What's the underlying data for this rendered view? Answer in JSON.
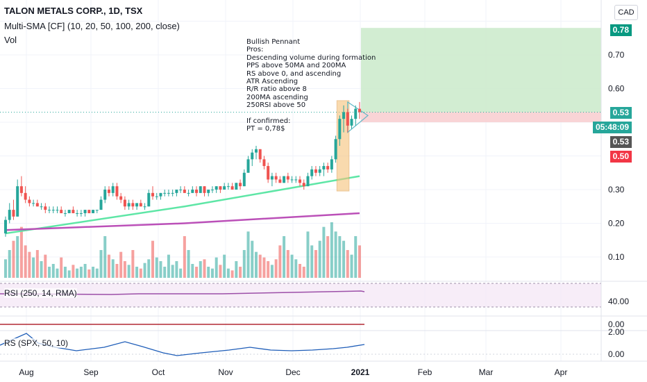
{
  "header": {
    "title": "TALON METALS CORP., 1D, TSX",
    "sma_label": "Multi-SMA [CF] (10, 20, 50, 100, 200, close)",
    "vol_label": "Vol",
    "currency_button": "CAD"
  },
  "annotation": {
    "lines": [
      "Bullish Pennant",
      "Pros:",
      "Descending volume during formation",
      "PPS above 50MA and 200MA",
      "RS above 0, and ascending",
      "ATR Ascending",
      "R/R ratio above 8",
      "200MA ascending",
      "250RSI above 50",
      "",
      "If confirmed:",
      "PT = 0,78$"
    ]
  },
  "price_badges": {
    "target": "0.78",
    "last": "0.53",
    "countdown": "05:48:09",
    "prev": "0.53",
    "stop": "0.50"
  },
  "colors": {
    "up": "#26a69a",
    "down": "#ef5350",
    "sma50": "#5ee6a6",
    "sma200": "#bb50b8",
    "target_zone": "#cdebcd",
    "stop_zone": "#f8cfd1",
    "rs_line": "#1e5db8",
    "rsi_line": "#9c4fa8",
    "pennant_box": "#f6c27a"
  },
  "panes": {
    "rsi_label": "RSI (250, 14, RMA)",
    "rs_label": "RS (SPX, 50, 10)",
    "rsi_axis": [
      "40.00"
    ],
    "zero_axis": [
      "0.00"
    ],
    "rs_axis": [
      "2.00",
      "0.00"
    ]
  },
  "chart_data": {
    "type": "candlestick",
    "title": "TALON METALS CORP., 1D, TSX",
    "x_ticks": [
      "Aug",
      "Sep",
      "Oct",
      "Nov",
      "Dec",
      "2021",
      "Feb",
      "Mar",
      "Apr"
    ],
    "y_ticks": [
      "0.10",
      "0.20",
      "0.30",
      "0.60",
      "0.70"
    ],
    "ylim": [
      0.05,
      0.82
    ],
    "ohlc": [
      [
        0.17,
        0.22,
        0.16,
        0.21
      ],
      [
        0.21,
        0.26,
        0.2,
        0.24
      ],
      [
        0.24,
        0.27,
        0.21,
        0.22
      ],
      [
        0.22,
        0.33,
        0.22,
        0.31
      ],
      [
        0.31,
        0.34,
        0.28,
        0.29
      ],
      [
        0.29,
        0.31,
        0.26,
        0.27
      ],
      [
        0.27,
        0.28,
        0.25,
        0.26
      ],
      [
        0.26,
        0.27,
        0.25,
        0.26
      ],
      [
        0.26,
        0.27,
        0.25,
        0.25
      ],
      [
        0.25,
        0.26,
        0.24,
        0.25
      ],
      [
        0.25,
        0.26,
        0.23,
        0.24
      ],
      [
        0.24,
        0.25,
        0.23,
        0.24
      ],
      [
        0.24,
        0.25,
        0.23,
        0.24
      ],
      [
        0.24,
        0.25,
        0.23,
        0.24
      ],
      [
        0.24,
        0.25,
        0.23,
        0.23
      ],
      [
        0.23,
        0.24,
        0.22,
        0.23
      ],
      [
        0.23,
        0.24,
        0.23,
        0.24
      ],
      [
        0.24,
        0.25,
        0.23,
        0.23
      ],
      [
        0.23,
        0.24,
        0.22,
        0.23
      ],
      [
        0.23,
        0.24,
        0.22,
        0.23
      ],
      [
        0.23,
        0.24,
        0.22,
        0.24
      ],
      [
        0.24,
        0.24,
        0.23,
        0.23
      ],
      [
        0.23,
        0.24,
        0.23,
        0.24
      ],
      [
        0.24,
        0.24,
        0.23,
        0.24
      ],
      [
        0.24,
        0.28,
        0.24,
        0.27
      ],
      [
        0.27,
        0.31,
        0.26,
        0.3
      ],
      [
        0.3,
        0.31,
        0.28,
        0.29
      ],
      [
        0.29,
        0.32,
        0.28,
        0.31
      ],
      [
        0.31,
        0.32,
        0.27,
        0.28
      ],
      [
        0.28,
        0.29,
        0.26,
        0.27
      ],
      [
        0.27,
        0.28,
        0.24,
        0.25
      ],
      [
        0.25,
        0.27,
        0.24,
        0.26
      ],
      [
        0.26,
        0.27,
        0.24,
        0.25
      ],
      [
        0.25,
        0.26,
        0.24,
        0.26
      ],
      [
        0.26,
        0.27,
        0.25,
        0.25
      ],
      [
        0.25,
        0.26,
        0.24,
        0.25
      ],
      [
        0.25,
        0.3,
        0.25,
        0.29
      ],
      [
        0.29,
        0.31,
        0.27,
        0.28
      ],
      [
        0.28,
        0.29,
        0.27,
        0.28
      ],
      [
        0.28,
        0.29,
        0.27,
        0.29
      ],
      [
        0.29,
        0.3,
        0.28,
        0.29
      ],
      [
        0.29,
        0.3,
        0.28,
        0.29
      ],
      [
        0.29,
        0.3,
        0.28,
        0.29
      ],
      [
        0.29,
        0.3,
        0.28,
        0.3
      ],
      [
        0.3,
        0.31,
        0.29,
        0.3
      ],
      [
        0.3,
        0.31,
        0.29,
        0.29
      ],
      [
        0.29,
        0.3,
        0.28,
        0.29
      ],
      [
        0.29,
        0.31,
        0.29,
        0.3
      ],
      [
        0.3,
        0.31,
        0.28,
        0.29
      ],
      [
        0.29,
        0.31,
        0.29,
        0.31
      ],
      [
        0.31,
        0.31,
        0.28,
        0.29
      ],
      [
        0.29,
        0.3,
        0.28,
        0.3
      ],
      [
        0.3,
        0.31,
        0.29,
        0.3
      ],
      [
        0.3,
        0.31,
        0.29,
        0.31
      ],
      [
        0.31,
        0.31,
        0.29,
        0.3
      ],
      [
        0.3,
        0.32,
        0.3,
        0.31
      ],
      [
        0.31,
        0.32,
        0.3,
        0.31
      ],
      [
        0.31,
        0.32,
        0.3,
        0.3
      ],
      [
        0.3,
        0.32,
        0.3,
        0.32
      ],
      [
        0.32,
        0.33,
        0.3,
        0.31
      ],
      [
        0.31,
        0.36,
        0.31,
        0.35
      ],
      [
        0.35,
        0.4,
        0.35,
        0.39
      ],
      [
        0.39,
        0.42,
        0.37,
        0.41
      ],
      [
        0.41,
        0.43,
        0.39,
        0.42
      ],
      [
        0.42,
        0.42,
        0.38,
        0.39
      ],
      [
        0.39,
        0.4,
        0.36,
        0.37
      ],
      [
        0.37,
        0.38,
        0.32,
        0.33
      ],
      [
        0.33,
        0.35,
        0.31,
        0.34
      ],
      [
        0.34,
        0.35,
        0.32,
        0.33
      ],
      [
        0.33,
        0.34,
        0.32,
        0.32
      ],
      [
        0.32,
        0.34,
        0.32,
        0.34
      ],
      [
        0.34,
        0.35,
        0.32,
        0.33
      ],
      [
        0.33,
        0.34,
        0.32,
        0.33
      ],
      [
        0.33,
        0.34,
        0.32,
        0.33
      ],
      [
        0.33,
        0.34,
        0.31,
        0.32
      ],
      [
        0.32,
        0.33,
        0.3,
        0.31
      ],
      [
        0.31,
        0.35,
        0.31,
        0.34
      ],
      [
        0.34,
        0.37,
        0.33,
        0.36
      ],
      [
        0.36,
        0.37,
        0.34,
        0.35
      ],
      [
        0.35,
        0.37,
        0.34,
        0.36
      ],
      [
        0.36,
        0.38,
        0.34,
        0.37
      ],
      [
        0.37,
        0.38,
        0.35,
        0.36
      ],
      [
        0.36,
        0.4,
        0.35,
        0.39
      ],
      [
        0.39,
        0.46,
        0.38,
        0.45
      ],
      [
        0.45,
        0.52,
        0.43,
        0.51
      ],
      [
        0.51,
        0.55,
        0.47,
        0.53
      ],
      [
        0.53,
        0.54,
        0.47,
        0.49
      ],
      [
        0.49,
        0.52,
        0.48,
        0.51
      ],
      [
        0.51,
        0.55,
        0.49,
        0.54
      ],
      [
        0.54,
        0.56,
        0.51,
        0.53
      ]
    ],
    "volume": [
      20,
      30,
      40,
      45,
      55,
      35,
      28,
      22,
      30,
      18,
      25,
      12,
      15,
      10,
      22,
      12,
      8,
      14,
      10,
      12,
      15,
      9,
      12,
      10,
      30,
      45,
      25,
      20,
      15,
      28,
      18,
      14,
      30,
      12,
      10,
      16,
      20,
      40,
      22,
      18,
      12,
      25,
      14,
      18,
      10,
      45,
      30,
      15,
      12,
      18,
      20,
      12,
      10,
      22,
      14,
      25,
      10,
      8,
      18,
      12,
      30,
      50,
      40,
      28,
      25,
      22,
      18,
      14,
      20,
      35,
      45,
      30,
      25,
      20,
      15,
      12,
      50,
      35,
      30,
      40,
      55,
      45,
      60,
      50,
      45,
      40,
      30,
      25,
      45,
      35
    ],
    "series": [
      {
        "name": "SMA 50",
        "values": [
          0.17,
          0.25,
          0.34
        ]
      },
      {
        "name": "SMA 200",
        "values": [
          0.18,
          0.2,
          0.23
        ]
      }
    ],
    "trade": {
      "entry": 0.53,
      "target": 0.78,
      "stop": 0.5
    }
  }
}
